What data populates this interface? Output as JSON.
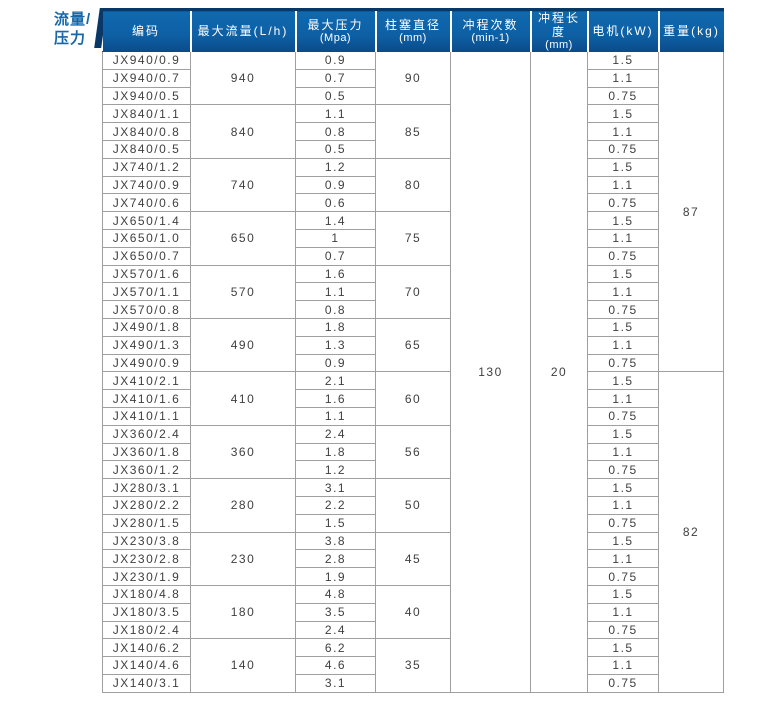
{
  "page_label": {
    "line1": "流量/",
    "line2": "压力"
  },
  "colors": {
    "header_blue": "#0e5fa4",
    "header_dark_navy": "#0a3866",
    "label_blue": "#1767a9",
    "border_gray": "#9f9f9f",
    "body_text": "#3f3f3f"
  },
  "table": {
    "headers": [
      {
        "line1": "编码",
        "line2": ""
      },
      {
        "line1": "最大流量(L/h)",
        "line2": ""
      },
      {
        "line1": "最大压力",
        "line2": "(Mpa)"
      },
      {
        "line1": "柱塞直径",
        "line2": "(mm)"
      },
      {
        "line1": "冲程次数",
        "line2": "(min-1)"
      },
      {
        "line1": "冲程长度",
        "line2": "(mm)"
      },
      {
        "line1": "电机(kW)",
        "line2": ""
      },
      {
        "line1": "重量(kg)",
        "line2": ""
      }
    ],
    "shared": {
      "stroke_count": "130",
      "stroke_length": "20"
    },
    "weights": [
      "87",
      "82"
    ],
    "groups": [
      {
        "flow": "940",
        "diameter": "90",
        "rows": [
          [
            "JX940/0.9",
            "0.9",
            "1.5"
          ],
          [
            "JX940/0.7",
            "0.7",
            "1.1"
          ],
          [
            "JX940/0.5",
            "0.5",
            "0.75"
          ]
        ]
      },
      {
        "flow": "840",
        "diameter": "85",
        "rows": [
          [
            "JX840/1.1",
            "1.1",
            "1.5"
          ],
          [
            "JX840/0.8",
            "0.8",
            "1.1"
          ],
          [
            "JX840/0.5",
            "0.5",
            "0.75"
          ]
        ]
      },
      {
        "flow": "740",
        "diameter": "80",
        "rows": [
          [
            "JX740/1.2",
            "1.2",
            "1.5"
          ],
          [
            "JX740/0.9",
            "0.9",
            "1.1"
          ],
          [
            "JX740/0.6",
            "0.6",
            "0.75"
          ]
        ]
      },
      {
        "flow": "650",
        "diameter": "75",
        "rows": [
          [
            "JX650/1.4",
            "1.4",
            "1.5"
          ],
          [
            "JX650/1.0",
            "1",
            "1.1"
          ],
          [
            "JX650/0.7",
            "0.7",
            "0.75"
          ]
        ]
      },
      {
        "flow": "570",
        "diameter": "70",
        "rows": [
          [
            "JX570/1.6",
            "1.6",
            "1.5"
          ],
          [
            "JX570/1.1",
            "1.1",
            "1.1"
          ],
          [
            "JX570/0.8",
            "0.8",
            "0.75"
          ]
        ]
      },
      {
        "flow": "490",
        "diameter": "65",
        "rows": [
          [
            "JX490/1.8",
            "1.8",
            "1.5"
          ],
          [
            "JX490/1.3",
            "1.3",
            "1.1"
          ],
          [
            "JX490/0.9",
            "0.9",
            "0.75"
          ]
        ]
      },
      {
        "flow": "410",
        "diameter": "60",
        "rows": [
          [
            "JX410/2.1",
            "2.1",
            "1.5"
          ],
          [
            "JX410/1.6",
            "1.6",
            "1.1"
          ],
          [
            "JX410/1.1",
            "1.1",
            "0.75"
          ]
        ]
      },
      {
        "flow": "360",
        "diameter": "56",
        "rows": [
          [
            "JX360/2.4",
            "2.4",
            "1.5"
          ],
          [
            "JX360/1.8",
            "1.8",
            "1.1"
          ],
          [
            "JX360/1.2",
            "1.2",
            "0.75"
          ]
        ]
      },
      {
        "flow": "280",
        "diameter": "50",
        "rows": [
          [
            "JX280/3.1",
            "3.1",
            "1.5"
          ],
          [
            "JX280/2.2",
            "2.2",
            "1.1"
          ],
          [
            "JX280/1.5",
            "1.5",
            "0.75"
          ]
        ]
      },
      {
        "flow": "230",
        "diameter": "45",
        "rows": [
          [
            "JX230/3.8",
            "3.8",
            "1.5"
          ],
          [
            "JX230/2.8",
            "2.8",
            "1.1"
          ],
          [
            "JX230/1.9",
            "1.9",
            "0.75"
          ]
        ]
      },
      {
        "flow": "180",
        "diameter": "40",
        "rows": [
          [
            "JX180/4.8",
            "4.8",
            "1.5"
          ],
          [
            "JX180/3.5",
            "3.5",
            "1.1"
          ],
          [
            "JX180/2.4",
            "2.4",
            "0.75"
          ]
        ]
      },
      {
        "flow": "140",
        "diameter": "35",
        "rows": [
          [
            "JX140/6.2",
            "6.2",
            "1.5"
          ],
          [
            "JX140/4.6",
            "4.6",
            "1.1"
          ],
          [
            "JX140/3.1",
            "3.1",
            "0.75"
          ]
        ]
      }
    ]
  }
}
